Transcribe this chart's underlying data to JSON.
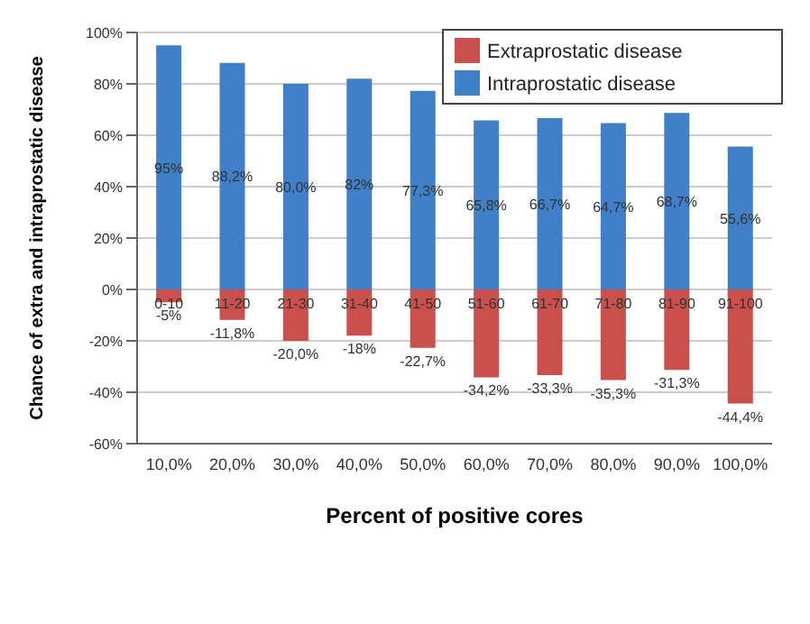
{
  "chart_data": {
    "type": "bar",
    "stacked": true,
    "xlabel": "Percent of positive cores",
    "ylabel": "Chance of extra and intraprostatic disease",
    "categories": [
      "10,0%",
      "20,0%",
      "30,0%",
      "40,0%",
      "50,0%",
      "60,0%",
      "70,0%",
      "80,0%",
      "90,0%",
      "100,0%"
    ],
    "series": [
      {
        "name": "Extraprostatic disease",
        "color": "#c9504d",
        "values": [
          -5,
          -11.8,
          -20.0,
          -18,
          -22.7,
          -34.2,
          -33.3,
          -35.3,
          -31.3,
          -44.4
        ],
        "value_labels": [
          "-5%",
          "-11,8%",
          "-20,0%",
          "-18%",
          "-22,7%",
          "-34,2%",
          "-33,3%",
          "-35,3%",
          "-31,3%",
          "-44,4%"
        ]
      },
      {
        "name": "Intraprostatic disease",
        "color": "#3f80c8",
        "values": [
          95,
          88.2,
          80.0,
          82,
          77.3,
          65.8,
          66.7,
          64.7,
          68.7,
          55.6
        ],
        "value_labels": [
          "95%",
          "88,2%",
          "80,0%",
          "82%",
          "77,3%",
          "65,8%",
          "66,7%",
          "64,7%",
          "68,7%",
          "55,6%"
        ]
      }
    ],
    "ylim": [
      -60,
      100
    ],
    "yticks": [
      {
        "value": -60,
        "label": "-60%"
      },
      {
        "value": -40,
        "label": "-40%"
      },
      {
        "value": -20,
        "label": "-20%"
      },
      {
        "value": 0,
        "label": "0%"
      },
      {
        "value": 20,
        "label": "20%"
      },
      {
        "value": 40,
        "label": "40%"
      },
      {
        "value": 60,
        "label": "60%"
      },
      {
        "value": 80,
        "label": "80%"
      },
      {
        "value": 100,
        "label": "100%"
      }
    ],
    "grid": "y",
    "legend": "top right",
    "annotations": [
      {
        "text": "0-10",
        "x": "10,0%",
        "y": 0
      },
      {
        "text": "11-20",
        "x": "20,0%",
        "y": 0
      },
      {
        "text": "21-30",
        "x": "30,0%",
        "y": 0
      },
      {
        "text": "31-40",
        "x": "40,0%",
        "y": 0
      },
      {
        "text": "41-50",
        "x": "50,0%",
        "y": 0
      },
      {
        "text": "51-60",
        "x": "60,0%",
        "y": 0
      },
      {
        "text": "61-70",
        "x": "70,0%",
        "y": 0
      },
      {
        "text": "71-80",
        "x": "80,0%",
        "y": 0
      },
      {
        "text": "81-90",
        "x": "90,0%",
        "y": 0
      },
      {
        "text": "91-100",
        "x": "100,0%",
        "y": 0
      }
    ]
  }
}
